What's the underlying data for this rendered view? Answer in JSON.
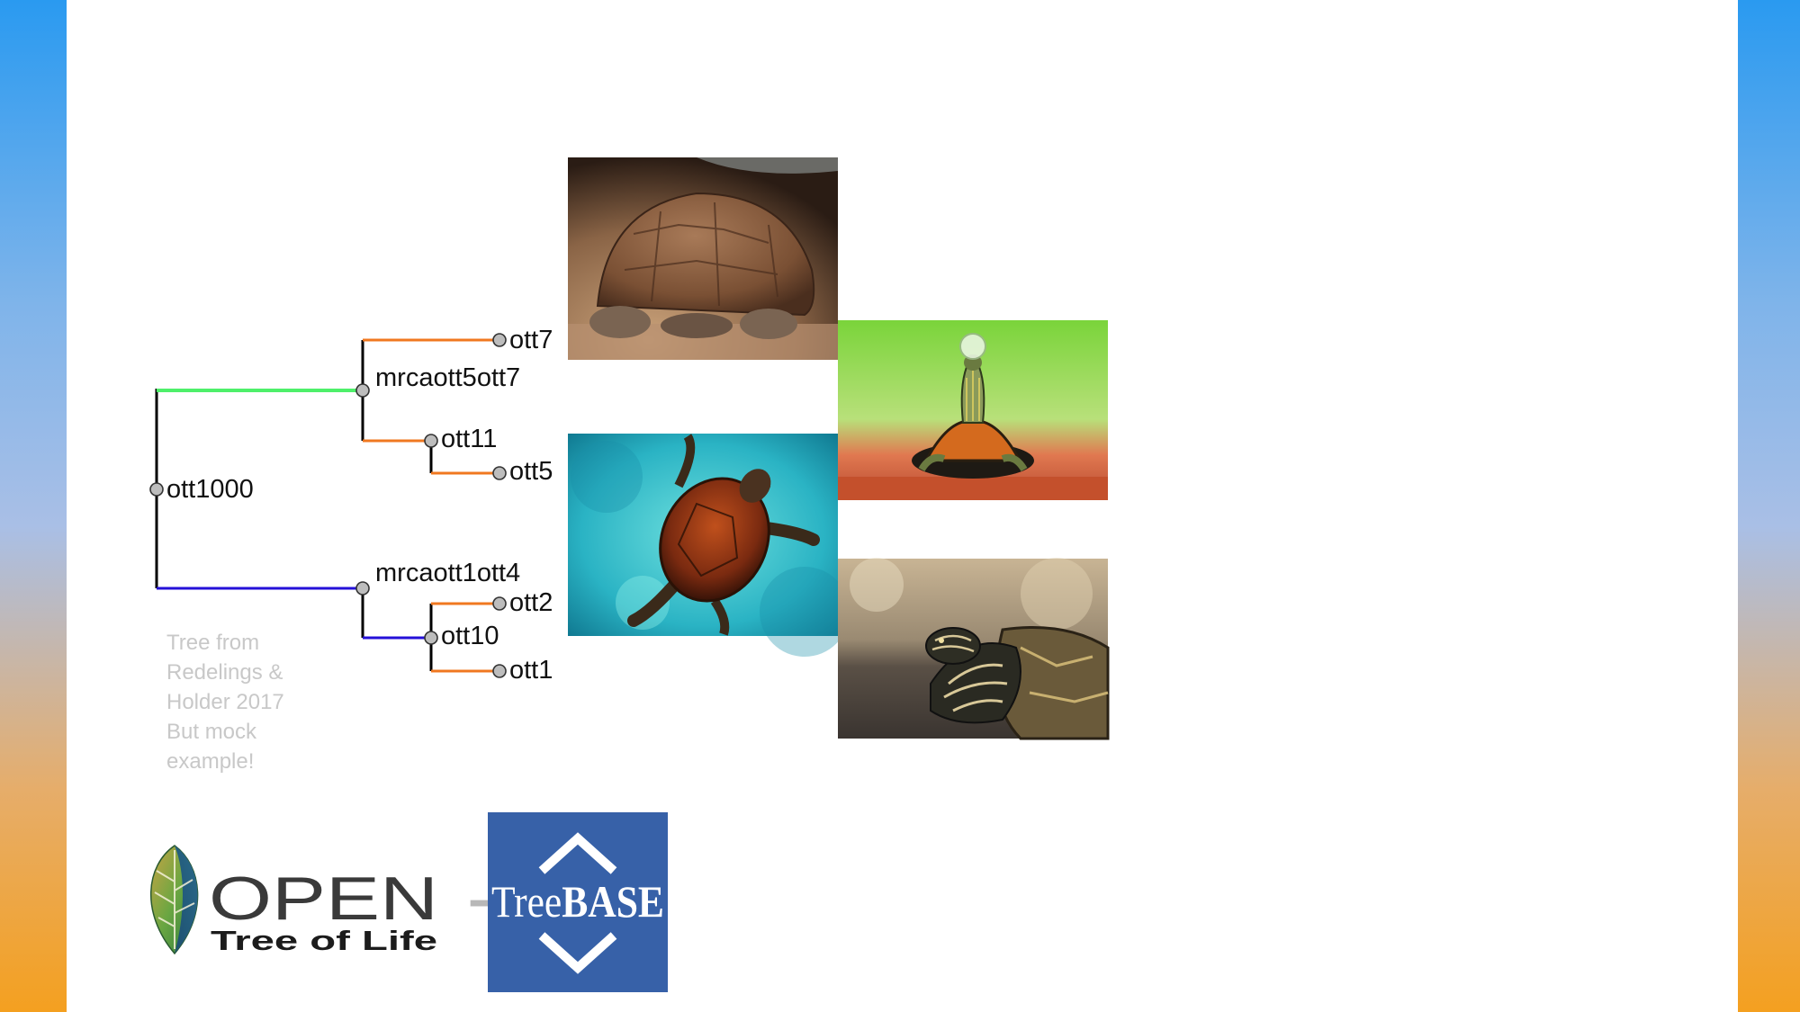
{
  "tree": {
    "root_label": "ott1000",
    "clade_a": {
      "label": "mrcaott5ott7",
      "leaf_top": "ott7",
      "inner_label": "ott11",
      "inner_leaf": "ott5"
    },
    "clade_b": {
      "label": "mrcaott1ott4",
      "inner_label": "ott10",
      "leaf_top": "ott2",
      "leaf_bottom": "ott1"
    },
    "branch_colors": {
      "clade_a_stem": "#4ef06a",
      "clade_b_stem": "#2410d8",
      "leaf": "#f07820",
      "black": "#000000"
    }
  },
  "note": {
    "lines": [
      "Tree from",
      "Redelings &",
      "Holder 2017",
      "But mock",
      "example!"
    ]
  },
  "photos": [
    {
      "id": "tortoise",
      "subject": "giant tortoise"
    },
    {
      "id": "red-eared-slider",
      "subject": "red-eared slider with bubble"
    },
    {
      "id": "sea-turtle",
      "subject": "sea turtle swimming"
    },
    {
      "id": "map-turtle",
      "subject": "map turtle"
    }
  ],
  "logos": {
    "open_tree": {
      "line1": "OPEN",
      "line2": "Tree of Life"
    },
    "plus": "+",
    "treebase": {
      "prefix": "Tree",
      "suffix": "BASE",
      "bg_color": "#3761a8"
    }
  }
}
